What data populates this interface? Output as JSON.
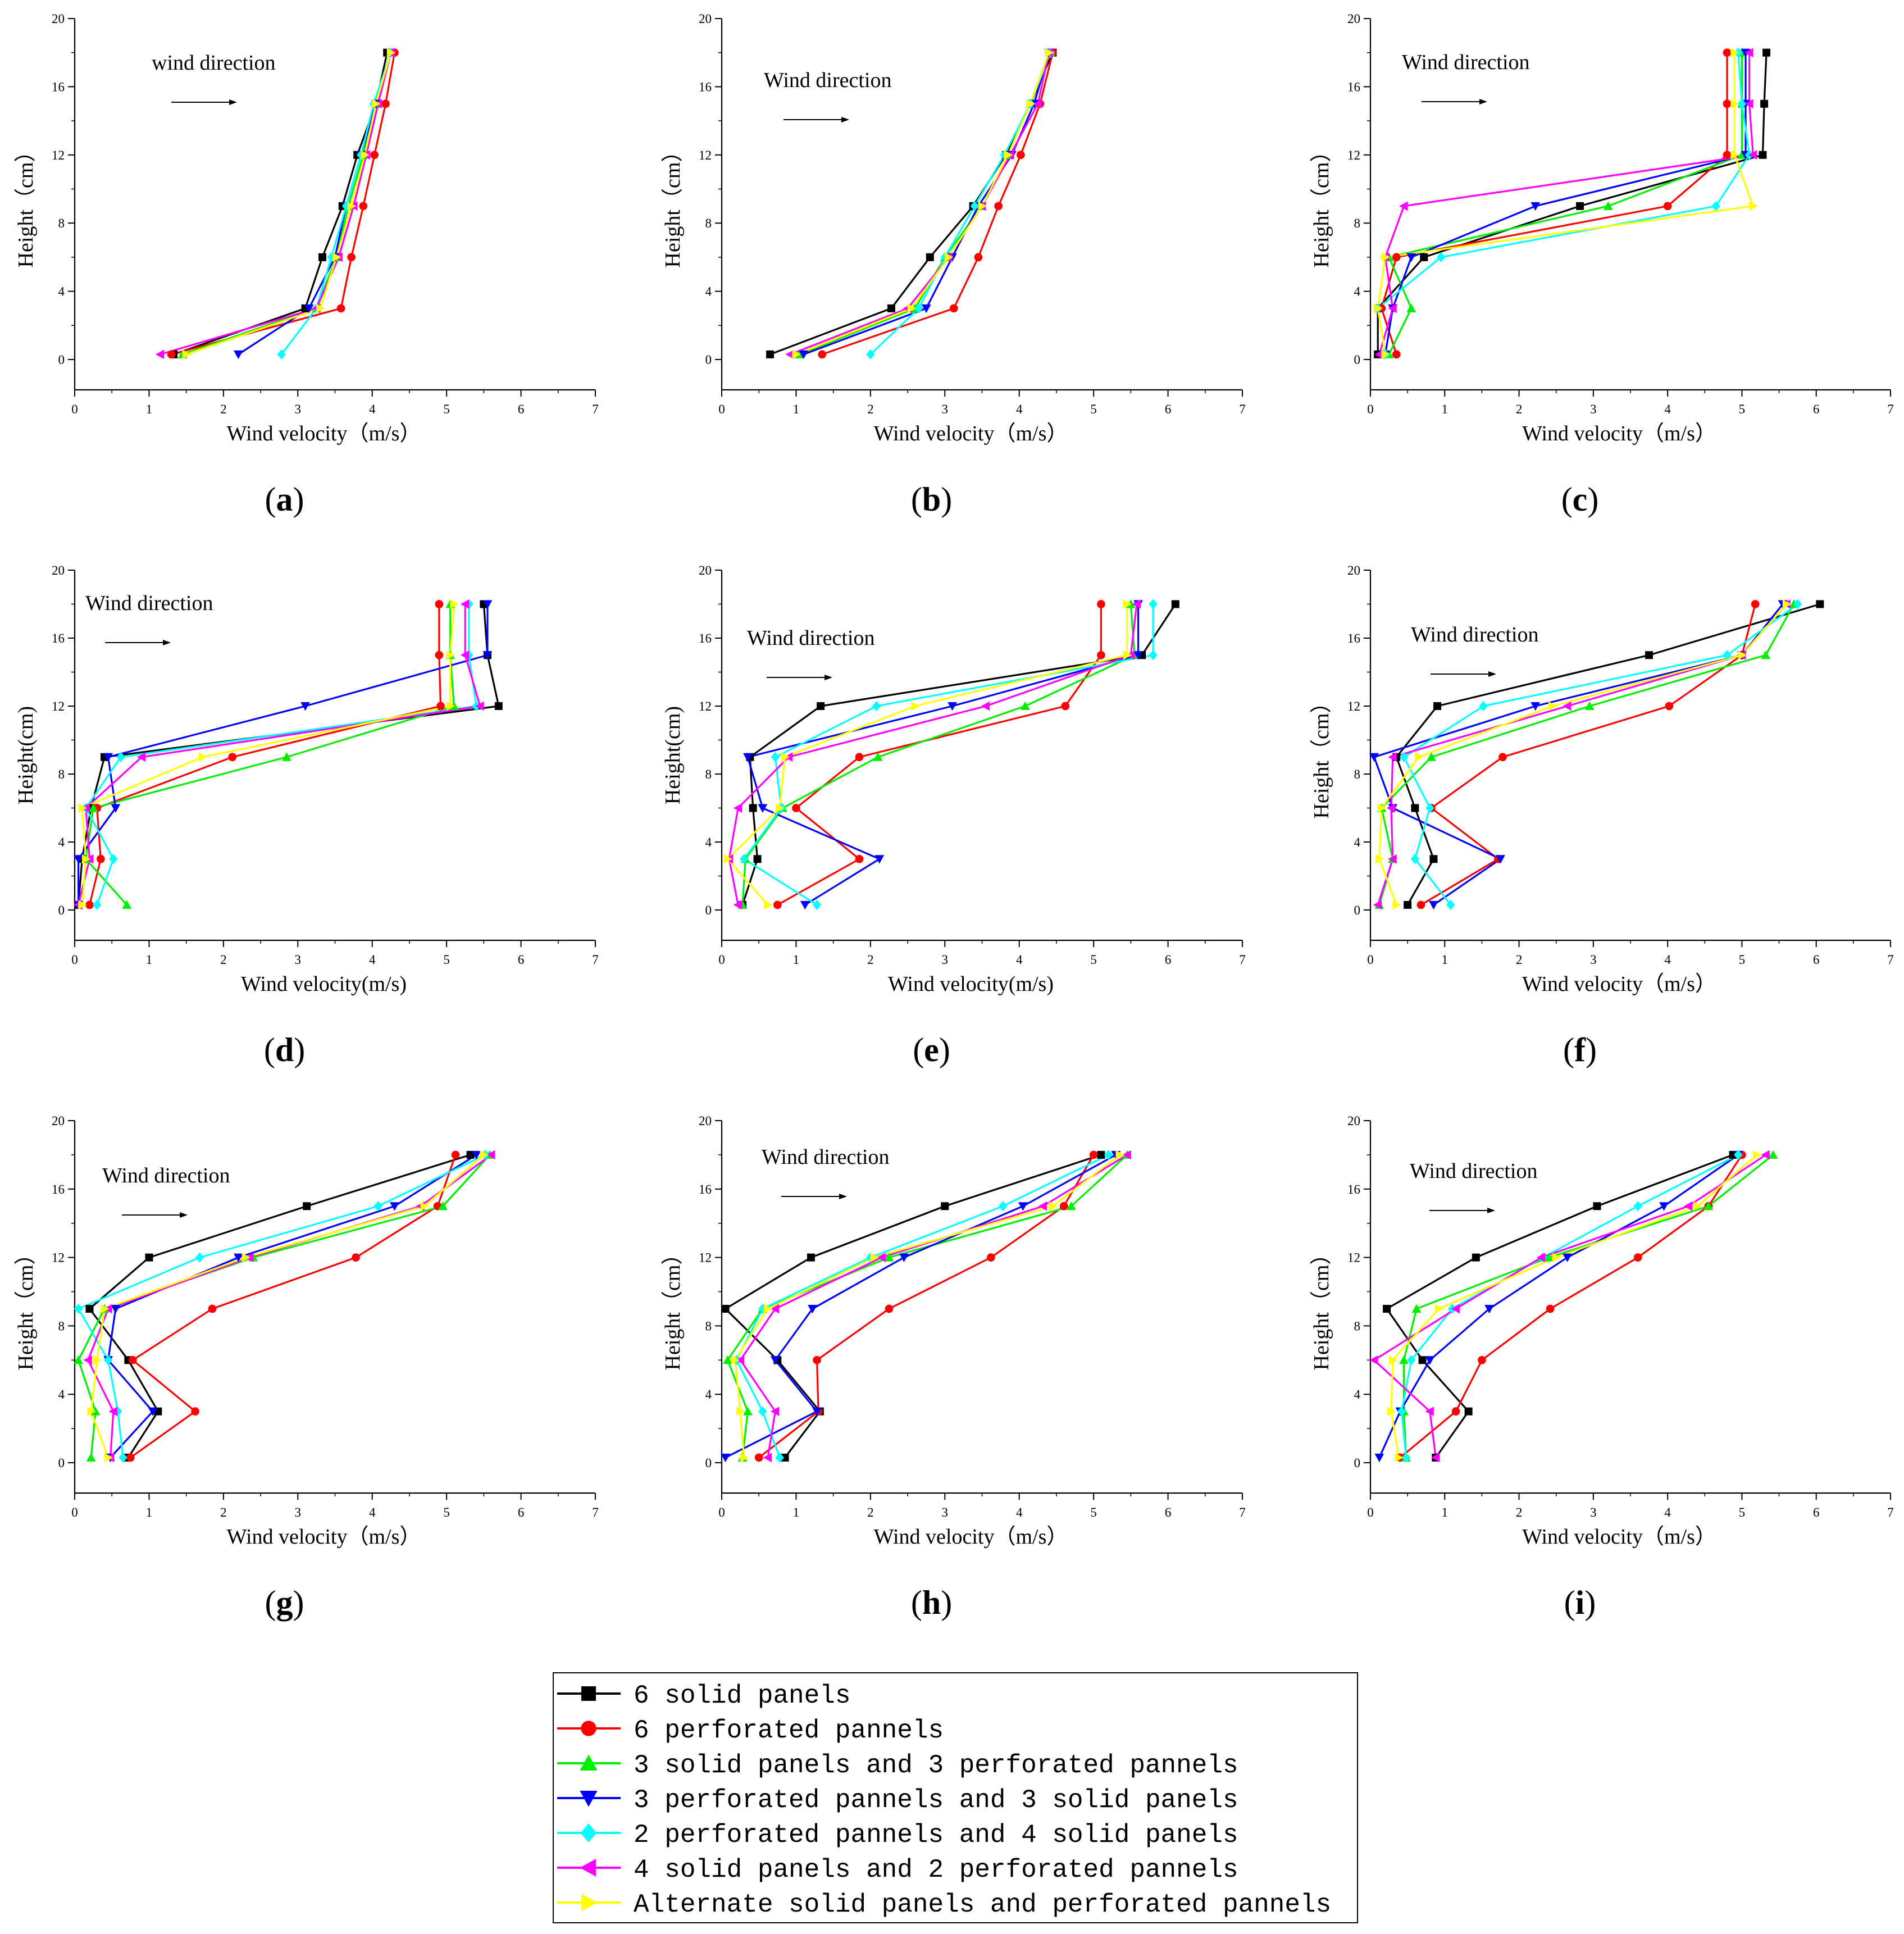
{
  "legend": [
    {
      "label": "6 solid panels",
      "color": "#000000",
      "marker": "square"
    },
    {
      "label": "6 perforated pannels",
      "color": "#ff0000",
      "marker": "circle"
    },
    {
      "label": "3 solid panels and 3 perforated pannels",
      "color": "#00ee00",
      "marker": "triangle-up"
    },
    {
      "label": "3 perforated pannels and 3 solid panels",
      "color": "#0000ff",
      "marker": "triangle-down"
    },
    {
      "label": "2 perforated pannels and 4 solid panels",
      "color": "#00ffff",
      "marker": "diamond"
    },
    {
      "label": "4 solid panels and 2 perforated pannels",
      "color": "#ff00ff",
      "marker": "triangle-left"
    },
    {
      "label": "Alternate solid panels and perforated pannels",
      "color": "#ffff00",
      "marker": "triangle-right"
    }
  ],
  "chart_data": [
    {
      "type": "line",
      "panel": "a",
      "ylabel": "Height（cm）",
      "xlabel": "Wind velocity（m/s）",
      "annotation": "wind direction",
      "xlim": [
        0,
        7
      ],
      "ylim": [
        0,
        20
      ],
      "xticks": [
        0,
        1,
        2,
        3,
        4,
        5,
        6,
        7
      ],
      "yticks": [
        0,
        4,
        8,
        12,
        16,
        20
      ],
      "y": [
        0.3,
        3,
        6,
        9,
        12,
        15,
        18
      ],
      "series": [
        [
          1.33,
          3.1,
          3.33,
          3.6,
          3.8,
          4.05,
          4.2
        ],
        [
          1.3,
          3.58,
          3.72,
          3.88,
          4.03,
          4.18,
          4.3
        ],
        [
          1.45,
          3.25,
          3.52,
          3.68,
          3.88,
          4.05,
          4.25
        ],
        [
          2.2,
          3.15,
          3.5,
          3.65,
          3.85,
          4.05,
          4.25
        ],
        [
          2.78,
          3.25,
          3.45,
          3.65,
          3.85,
          4.02,
          4.25
        ],
        [
          1.15,
          3.25,
          3.55,
          3.75,
          3.92,
          4.08,
          4.25
        ],
        [
          1.5,
          3.3,
          3.52,
          3.72,
          3.9,
          4.05,
          4.25
        ]
      ]
    },
    {
      "type": "line",
      "panel": "b",
      "ylabel": "Height（cm）",
      "xlabel": "Wind velocity（m/s）",
      "annotation": "Wind direction",
      "xlim": [
        0,
        7
      ],
      "ylim": [
        0,
        20
      ],
      "xticks": [
        0,
        1,
        2,
        3,
        4,
        5,
        6,
        7
      ],
      "yticks": [
        0,
        4,
        8,
        12,
        16,
        20
      ],
      "y": [
        0.3,
        3,
        6,
        9,
        12,
        15,
        18
      ],
      "series": [
        [
          0.65,
          2.28,
          2.8,
          3.38,
          3.82,
          4.15,
          4.45
        ],
        [
          1.35,
          3.12,
          3.45,
          3.72,
          4.02,
          4.28,
          4.45
        ],
        [
          1.05,
          2.6,
          3.0,
          3.5,
          3.85,
          4.15,
          4.42
        ],
        [
          1.1,
          2.75,
          3.1,
          3.45,
          3.9,
          4.2,
          4.4
        ],
        [
          2.0,
          2.65,
          3.0,
          3.4,
          3.8,
          4.15,
          4.42
        ],
        [
          0.92,
          2.5,
          3.05,
          3.5,
          3.88,
          4.25,
          4.4
        ],
        [
          1.0,
          2.55,
          3.05,
          3.5,
          3.85,
          4.15,
          4.4
        ]
      ]
    },
    {
      "type": "line",
      "panel": "c",
      "ylabel": "Height（cm）",
      "xlabel": "Wind velocity（m/s）",
      "annotation": "Wind direction",
      "xlim": [
        0,
        7
      ],
      "ylim": [
        0,
        20
      ],
      "xticks": [
        0,
        1,
        2,
        3,
        4,
        5,
        6,
        7
      ],
      "yticks": [
        0,
        4,
        8,
        12,
        16,
        20
      ],
      "y": [
        0.3,
        3,
        6,
        9,
        12,
        15,
        18
      ],
      "series": [
        [
          0.1,
          0.1,
          0.72,
          2.82,
          5.28,
          5.3,
          5.33
        ],
        [
          0.35,
          0.15,
          0.35,
          4.0,
          4.8,
          4.8,
          4.8
        ],
        [
          0.25,
          0.55,
          0.25,
          3.2,
          5.0,
          5.0,
          5.0
        ],
        [
          0.2,
          0.3,
          0.55,
          2.22,
          5.05,
          5.05,
          5.05
        ],
        [
          0.2,
          0.1,
          0.95,
          4.65,
          5.1,
          5.0,
          4.95
        ],
        [
          0.12,
          0.3,
          0.2,
          0.45,
          5.15,
          5.1,
          5.1
        ],
        [
          0.2,
          0.1,
          0.2,
          5.15,
          4.9,
          4.9,
          4.9
        ]
      ]
    },
    {
      "type": "line",
      "panel": "d",
      "ylabel": "Height(cm)",
      "xlabel": "Wind velocity(m/s)",
      "annotation": "Wind direction",
      "xlim": [
        0,
        7
      ],
      "ylim": [
        0,
        20
      ],
      "xticks": [
        0,
        1,
        2,
        3,
        4,
        5,
        6,
        7
      ],
      "yticks": [
        0,
        4,
        8,
        12,
        16,
        20
      ],
      "y": [
        0.3,
        3,
        6,
        9,
        12,
        15,
        18
      ],
      "series": [
        [
          0.05,
          0.1,
          0.22,
          0.4,
          5.7,
          5.55,
          5.5
        ],
        [
          0.2,
          0.35,
          0.3,
          2.12,
          4.92,
          4.9,
          4.9
        ],
        [
          0.7,
          0.15,
          0.25,
          2.85,
          5.1,
          5.05,
          5.05
        ],
        [
          0.05,
          0.05,
          0.55,
          0.45,
          3.1,
          5.55,
          5.55
        ],
        [
          0.3,
          0.52,
          0.15,
          0.62,
          5.4,
          5.3,
          5.3
        ],
        [
          0.05,
          0.2,
          0.15,
          0.9,
          5.45,
          5.25,
          5.25
        ],
        [
          0.1,
          0.15,
          0.1,
          1.72,
          5.05,
          5.05,
          5.1
        ]
      ]
    },
    {
      "type": "line",
      "panel": "e",
      "ylabel": "Height(cm)",
      "xlabel": "Wind velocity(m/s)",
      "annotation": "Wind direction",
      "xlim": [
        0,
        7
      ],
      "ylim": [
        0,
        20
      ],
      "xticks": [
        0,
        1,
        2,
        3,
        4,
        5,
        6,
        7
      ],
      "yticks": [
        0,
        4,
        8,
        12,
        16,
        20
      ],
      "y": [
        0.3,
        3,
        6,
        9,
        12,
        15,
        18
      ],
      "series": [
        [
          0.28,
          0.48,
          0.42,
          0.38,
          1.33,
          5.65,
          6.1
        ],
        [
          0.75,
          1.85,
          1.0,
          1.85,
          4.62,
          5.1,
          5.1
        ],
        [
          0.28,
          0.32,
          0.82,
          2.1,
          4.08,
          5.55,
          5.5
        ],
        [
          1.12,
          2.12,
          0.55,
          0.35,
          3.1,
          5.6,
          5.6
        ],
        [
          1.28,
          0.3,
          0.8,
          0.72,
          2.08,
          5.8,
          5.8
        ],
        [
          0.22,
          0.1,
          0.22,
          0.9,
          3.55,
          5.5,
          5.58
        ],
        [
          0.62,
          0.08,
          0.78,
          0.85,
          2.6,
          5.45,
          5.45
        ]
      ]
    },
    {
      "type": "line",
      "panel": "f",
      "ylabel": "Height（cm）",
      "xlabel": "Wind velocity（m/s）",
      "annotation": "Wind direction",
      "xlim": [
        0,
        7
      ],
      "ylim": [
        0,
        20
      ],
      "xticks": [
        0,
        1,
        2,
        3,
        4,
        5,
        6,
        7
      ],
      "yticks": [
        0,
        4,
        8,
        12,
        16,
        20
      ],
      "y": [
        0.3,
        3,
        6,
        9,
        12,
        15,
        18
      ],
      "series": [
        [
          0.5,
          0.85,
          0.6,
          0.35,
          0.9,
          3.75,
          6.05
        ],
        [
          0.68,
          1.72,
          0.82,
          1.78,
          4.02,
          5.0,
          5.18
        ],
        [
          0.12,
          0.3,
          0.15,
          0.82,
          2.95,
          5.32,
          5.7
        ],
        [
          0.85,
          1.75,
          0.3,
          0.05,
          2.22,
          5.0,
          5.55
        ],
        [
          1.08,
          0.6,
          0.8,
          0.45,
          1.52,
          4.8,
          5.75
        ],
        [
          0.1,
          0.3,
          0.28,
          0.3,
          2.65,
          5.0,
          5.6
        ],
        [
          0.35,
          0.12,
          0.15,
          0.65,
          2.45,
          5.0,
          5.6
        ]
      ]
    },
    {
      "type": "line",
      "panel": "g",
      "ylabel": "Height（cm）",
      "xlabel": "Wind velocity（m/s）",
      "annotation": "Wind direction",
      "xlim": [
        0,
        7
      ],
      "ylim": [
        0,
        20
      ],
      "xticks": [
        0,
        1,
        2,
        3,
        4,
        5,
        6,
        7
      ],
      "yticks": [
        0,
        4,
        8,
        12,
        16,
        20
      ],
      "y": [
        0.3,
        3,
        6,
        9,
        12,
        15,
        18
      ],
      "series": [
        [
          0.72,
          1.12,
          0.72,
          0.2,
          1.0,
          3.12,
          5.32
        ],
        [
          0.75,
          1.62,
          0.78,
          1.85,
          3.78,
          4.88,
          5.12
        ],
        [
          0.22,
          0.28,
          0.05,
          0.4,
          2.4,
          4.95,
          5.58
        ],
        [
          0.48,
          1.05,
          0.45,
          0.55,
          2.2,
          4.3,
          5.4
        ],
        [
          0.65,
          0.58,
          0.45,
          0.05,
          1.68,
          4.08,
          5.52
        ],
        [
          0.48,
          0.52,
          0.18,
          0.45,
          2.35,
          4.65,
          5.6
        ],
        [
          0.45,
          0.22,
          0.3,
          0.4,
          2.3,
          4.7,
          5.5
        ]
      ]
    },
    {
      "type": "line",
      "panel": "h",
      "ylabel": "Height（cm）",
      "xlabel": "Wind velocity（m/s）",
      "annotation": "Wind direction",
      "xlim": [
        0,
        7
      ],
      "ylim": [
        0,
        20
      ],
      "xticks": [
        0,
        1,
        2,
        3,
        4,
        5,
        6,
        7
      ],
      "yticks": [
        0,
        4,
        8,
        12,
        16,
        20
      ],
      "y": [
        0.3,
        3,
        6,
        9,
        12,
        15,
        18
      ],
      "series": [
        [
          0.85,
          1.32,
          0.75,
          0.05,
          1.2,
          3.0,
          5.1
        ],
        [
          0.5,
          1.3,
          1.28,
          2.25,
          3.62,
          4.6,
          5.0
        ],
        [
          0.28,
          0.35,
          0.08,
          0.55,
          2.25,
          4.7,
          5.45
        ],
        [
          0.05,
          1.28,
          0.72,
          1.22,
          2.45,
          4.05,
          5.3
        ],
        [
          0.78,
          0.55,
          0.2,
          0.55,
          2.0,
          3.78,
          5.2
        ],
        [
          0.62,
          0.72,
          0.25,
          0.72,
          2.15,
          4.32,
          5.45
        ],
        [
          0.3,
          0.25,
          0.18,
          0.62,
          2.05,
          4.45,
          5.35
        ]
      ]
    },
    {
      "type": "line",
      "panel": "i",
      "ylabel": "Height（cm）",
      "xlabel": "Wind velocity（m/s）",
      "annotation": "Wind direction",
      "xlim": [
        0,
        7
      ],
      "ylim": [
        0,
        20
      ],
      "xticks": [
        0,
        1,
        2,
        3,
        4,
        5,
        6,
        7
      ],
      "yticks": [
        0,
        4,
        8,
        12,
        16,
        20
      ],
      "y": [
        0.3,
        3,
        6,
        9,
        12,
        15,
        18
      ],
      "series": [
        [
          0.88,
          1.32,
          0.7,
          0.22,
          1.42,
          3.05,
          4.88
        ],
        [
          0.4,
          1.15,
          1.5,
          2.42,
          3.6,
          4.55,
          5.0
        ],
        [
          0.48,
          0.45,
          0.45,
          0.62,
          2.4,
          4.55,
          5.42
        ],
        [
          0.12,
          0.4,
          0.8,
          1.6,
          2.65,
          3.95,
          4.95
        ],
        [
          0.48,
          0.42,
          0.55,
          1.1,
          2.32,
          3.6,
          4.95
        ],
        [
          0.88,
          0.8,
          0.05,
          1.15,
          2.3,
          4.28,
          5.32
        ],
        [
          0.38,
          0.28,
          0.3,
          0.92,
          2.5,
          4.4,
          5.2
        ]
      ]
    }
  ]
}
